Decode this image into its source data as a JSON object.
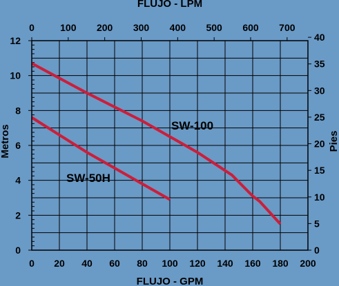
{
  "chart_data": {
    "type": "line",
    "top_axis_label": "FLUJO - LPM",
    "xlabel": "FLUJO - GPM",
    "ylabel": "Metros",
    "ylabel_right": "Pies",
    "xlim": [
      0,
      200
    ],
    "ylim": [
      0,
      12
    ],
    "x_ticks": [
      0,
      20,
      40,
      60,
      80,
      100,
      120,
      140,
      160,
      180,
      200
    ],
    "y_ticks": [
      0,
      2,
      4,
      6,
      8,
      10,
      12
    ],
    "top_ticks": [
      0,
      100,
      200,
      300,
      400,
      500,
      600,
      700
    ],
    "right_ticks": [
      0,
      5,
      10,
      15,
      20,
      25,
      30,
      35,
      40
    ],
    "grid": true,
    "colors": {
      "background": "#6a9ac6",
      "line": "#cc1e3a",
      "grid": "#000000"
    },
    "series": [
      {
        "name": "SW-100",
        "x": [
          0,
          40,
          80,
          120,
          145,
          160,
          165,
          180
        ],
        "y": [
          10.7,
          9.0,
          7.4,
          5.6,
          4.3,
          3.1,
          2.8,
          1.5
        ]
      },
      {
        "name": "SW-50H",
        "x": [
          0,
          20,
          40,
          60,
          80,
          100
        ],
        "y": [
          7.6,
          6.6,
          5.6,
          4.7,
          3.8,
          2.9
        ]
      }
    ]
  }
}
